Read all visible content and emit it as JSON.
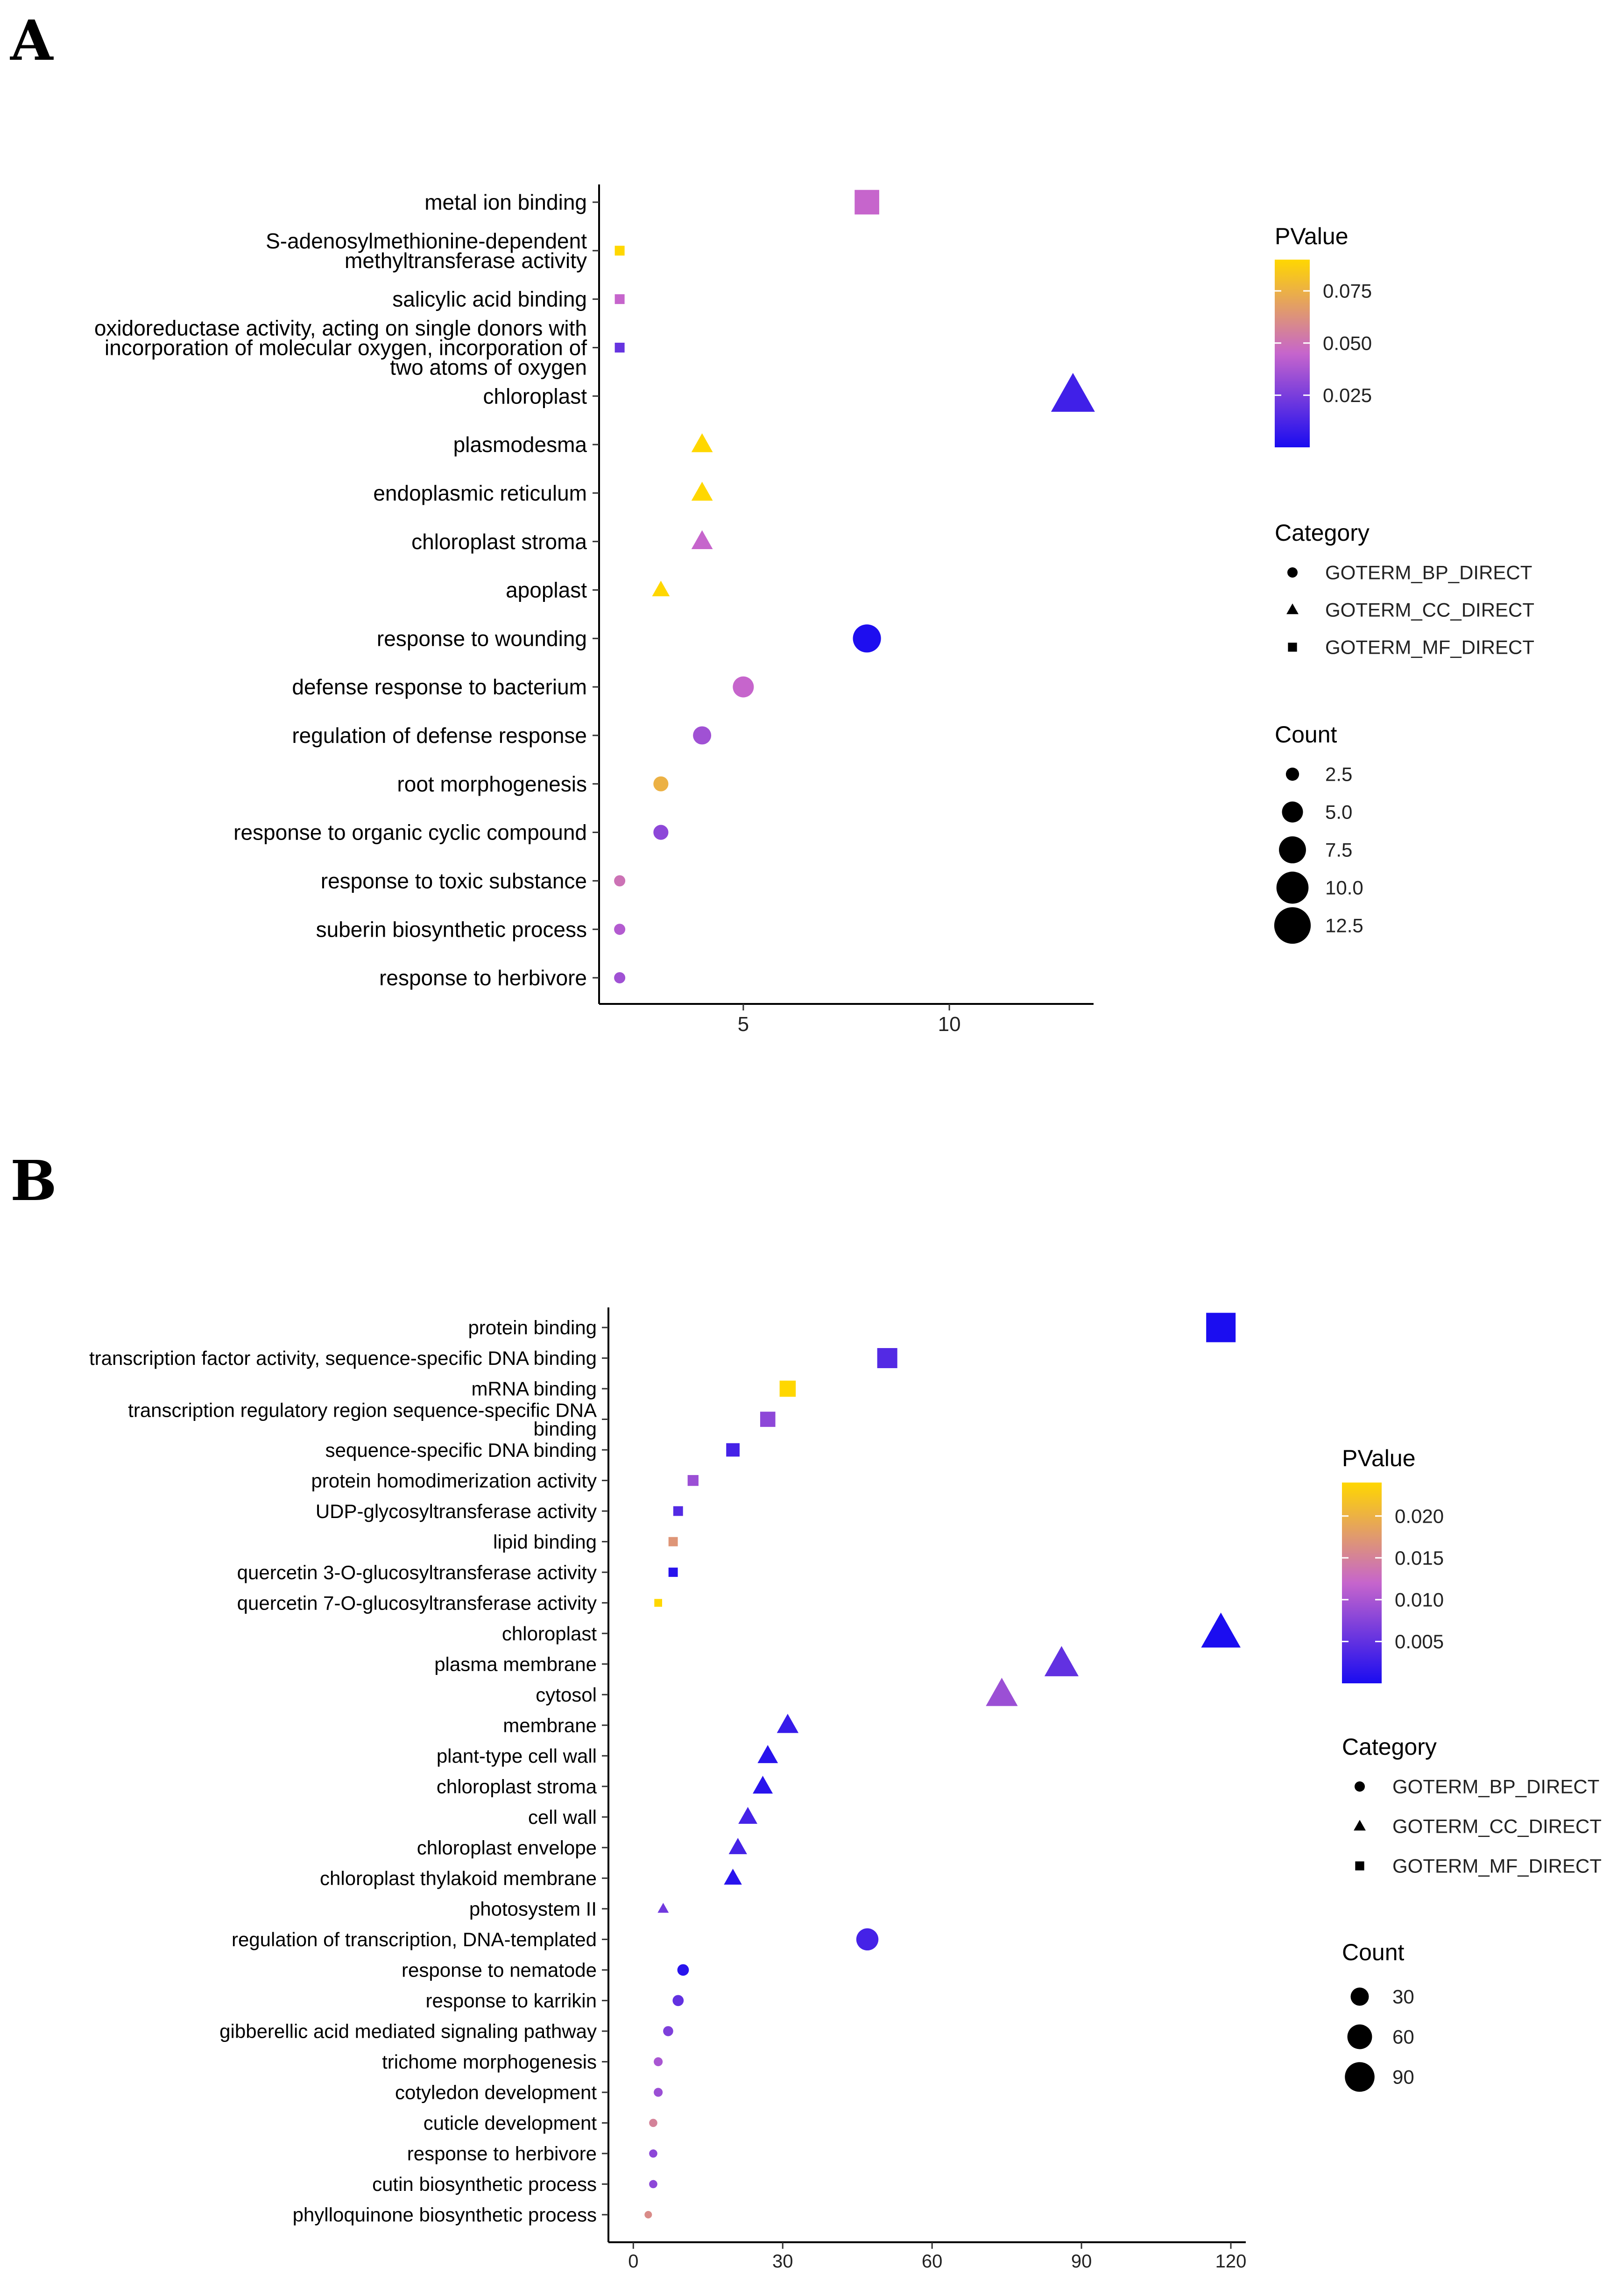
{
  "panels": {
    "a": "A",
    "b": "B"
  },
  "chart_data": [
    {
      "panel": "A",
      "type": "scatter",
      "xlabel": "",
      "ylabel": "",
      "xlim": [
        1.5,
        13.5
      ],
      "xticks": [
        5,
        10
      ],
      "categories": [
        "metal ion binding",
        "S-adenosylmethionine-dependent\nmethyltransferase activity",
        "salicylic acid binding",
        "oxidoreductase activity, acting on single donors with\nincorporation of molecular oxygen, incorporation of\ntwo atoms of oxygen",
        "chloroplast",
        "plasmodesma",
        "endoplasmic reticulum",
        "chloroplast stroma",
        "apoplast",
        "response to wounding",
        "defense response to bacterium",
        "regulation of defense response",
        "root morphogenesis",
        "response to organic cyclic compound",
        "response to toxic substance",
        "suberin biosynthetic process",
        "response to herbivore"
      ],
      "points": [
        {
          "count": 8,
          "category": "GOTERM_MF_DIRECT",
          "pvalue": 0.045
        },
        {
          "count": 2,
          "category": "GOTERM_MF_DIRECT",
          "pvalue": 0.09
        },
        {
          "count": 2,
          "category": "GOTERM_MF_DIRECT",
          "pvalue": 0.045
        },
        {
          "count": 2,
          "category": "GOTERM_MF_DIRECT",
          "pvalue": 0.02
        },
        {
          "count": 13,
          "category": "GOTERM_CC_DIRECT",
          "pvalue": 0.01
        },
        {
          "count": 4,
          "category": "GOTERM_CC_DIRECT",
          "pvalue": 0.09
        },
        {
          "count": 4,
          "category": "GOTERM_CC_DIRECT",
          "pvalue": 0.09
        },
        {
          "count": 4,
          "category": "GOTERM_CC_DIRECT",
          "pvalue": 0.045
        },
        {
          "count": 3,
          "category": "GOTERM_CC_DIRECT",
          "pvalue": 0.09
        },
        {
          "count": 8,
          "category": "GOTERM_BP_DIRECT",
          "pvalue": 0.001
        },
        {
          "count": 5,
          "category": "GOTERM_BP_DIRECT",
          "pvalue": 0.045
        },
        {
          "count": 4,
          "category": "GOTERM_BP_DIRECT",
          "pvalue": 0.035
        },
        {
          "count": 3,
          "category": "GOTERM_BP_DIRECT",
          "pvalue": 0.075
        },
        {
          "count": 3,
          "category": "GOTERM_BP_DIRECT",
          "pvalue": 0.03
        },
        {
          "count": 2,
          "category": "GOTERM_BP_DIRECT",
          "pvalue": 0.05
        },
        {
          "count": 2,
          "category": "GOTERM_BP_DIRECT",
          "pvalue": 0.04
        },
        {
          "count": 2,
          "category": "GOTERM_BP_DIRECT",
          "pvalue": 0.035
        }
      ],
      "pvalue_range": [
        0,
        0.09
      ],
      "count_range": [
        2,
        13
      ],
      "legend": {
        "pvalue_title": "PValue",
        "pvalue_ticks": [
          {
            "label": "0.075",
            "value": 0.075
          },
          {
            "label": "0.050",
            "value": 0.05
          },
          {
            "label": "0.025",
            "value": 0.025
          }
        ],
        "category_title": "Category",
        "category_items": [
          "GOTERM_BP_DIRECT",
          "GOTERM_CC_DIRECT",
          "GOTERM_MF_DIRECT"
        ],
        "count_title": "Count",
        "count_items": [
          {
            "label": "2.5",
            "value": 2.5
          },
          {
            "label": "5.0",
            "value": 5.0
          },
          {
            "label": "7.5",
            "value": 7.5
          },
          {
            "label": "10.0",
            "value": 10.0
          },
          {
            "label": "12.5",
            "value": 12.5
          }
        ]
      }
    },
    {
      "panel": "B",
      "type": "scatter",
      "xlabel": "",
      "ylabel": "",
      "xlim": [
        -5,
        123
      ],
      "xticks": [
        0,
        30,
        60,
        90,
        120
      ],
      "categories": [
        "protein binding",
        "transcription factor activity, sequence-specific DNA binding",
        "mRNA binding",
        "transcription regulatory region sequence-specific DNA\nbinding",
        "sequence-specific DNA binding",
        "protein homodimerization activity",
        "UDP-glycosyltransferase activity",
        "lipid binding",
        "quercetin 3-O-glucosyltransferase activity",
        "quercetin 7-O-glucosyltransferase activity",
        "chloroplast",
        "plasma membrane",
        "cytosol",
        "membrane",
        "plant-type cell wall",
        "chloroplast stroma",
        "cell wall",
        "chloroplast envelope",
        "chloroplast thylakoid membrane",
        "photosystem II",
        "regulation of transcription, DNA-templated",
        "response to nematode",
        "response to karrikin",
        "gibberellic acid mediated signaling pathway",
        "trichome morphogenesis",
        "cotyledon development",
        "cuticle development",
        "response to herbivore",
        "cutin biosynthetic process",
        "phylloquinone biosynthetic process"
      ],
      "points": [
        {
          "count": 118,
          "category": "GOTERM_MF_DIRECT",
          "pvalue": 0.0001
        },
        {
          "count": 51,
          "category": "GOTERM_MF_DIRECT",
          "pvalue": 0.004
        },
        {
          "count": 31,
          "category": "GOTERM_MF_DIRECT",
          "pvalue": 0.024
        },
        {
          "count": 27,
          "category": "GOTERM_MF_DIRECT",
          "pvalue": 0.008
        },
        {
          "count": 20,
          "category": "GOTERM_MF_DIRECT",
          "pvalue": 0.003
        },
        {
          "count": 12,
          "category": "GOTERM_MF_DIRECT",
          "pvalue": 0.009
        },
        {
          "count": 9,
          "category": "GOTERM_MF_DIRECT",
          "pvalue": 0.004
        },
        {
          "count": 8,
          "category": "GOTERM_MF_DIRECT",
          "pvalue": 0.017
        },
        {
          "count": 8,
          "category": "GOTERM_MF_DIRECT",
          "pvalue": 0.001
        },
        {
          "count": 5,
          "category": "GOTERM_MF_DIRECT",
          "pvalue": 0.024
        },
        {
          "count": 118,
          "category": "GOTERM_CC_DIRECT",
          "pvalue": 0.0001
        },
        {
          "count": 86,
          "category": "GOTERM_CC_DIRECT",
          "pvalue": 0.005
        },
        {
          "count": 74,
          "category": "GOTERM_CC_DIRECT",
          "pvalue": 0.009
        },
        {
          "count": 31,
          "category": "GOTERM_CC_DIRECT",
          "pvalue": 0.002
        },
        {
          "count": 27,
          "category": "GOTERM_CC_DIRECT",
          "pvalue": 0.001
        },
        {
          "count": 26,
          "category": "GOTERM_CC_DIRECT",
          "pvalue": 0.001
        },
        {
          "count": 23,
          "category": "GOTERM_CC_DIRECT",
          "pvalue": 0.003
        },
        {
          "count": 21,
          "category": "GOTERM_CC_DIRECT",
          "pvalue": 0.003
        },
        {
          "count": 20,
          "category": "GOTERM_CC_DIRECT",
          "pvalue": 0.001
        },
        {
          "count": 6,
          "category": "GOTERM_CC_DIRECT",
          "pvalue": 0.006
        },
        {
          "count": 47,
          "category": "GOTERM_BP_DIRECT",
          "pvalue": 0.003
        },
        {
          "count": 10,
          "category": "GOTERM_BP_DIRECT",
          "pvalue": 0.001
        },
        {
          "count": 9,
          "category": "GOTERM_BP_DIRECT",
          "pvalue": 0.005
        },
        {
          "count": 7,
          "category": "GOTERM_BP_DIRECT",
          "pvalue": 0.007
        },
        {
          "count": 5,
          "category": "GOTERM_BP_DIRECT",
          "pvalue": 0.01
        },
        {
          "count": 5,
          "category": "GOTERM_BP_DIRECT",
          "pvalue": 0.009
        },
        {
          "count": 4,
          "category": "GOTERM_BP_DIRECT",
          "pvalue": 0.015
        },
        {
          "count": 4,
          "category": "GOTERM_BP_DIRECT",
          "pvalue": 0.008
        },
        {
          "count": 4,
          "category": "GOTERM_BP_DIRECT",
          "pvalue": 0.008
        },
        {
          "count": 3,
          "category": "GOTERM_BP_DIRECT",
          "pvalue": 0.016
        }
      ],
      "pvalue_range": [
        0,
        0.024
      ],
      "count_range": [
        3,
        118
      ],
      "legend": {
        "pvalue_title": "PValue",
        "pvalue_ticks": [
          {
            "label": "0.020",
            "value": 0.02
          },
          {
            "label": "0.015",
            "value": 0.015
          },
          {
            "label": "0.010",
            "value": 0.01
          },
          {
            "label": "0.005",
            "value": 0.005
          }
        ],
        "category_title": "Category",
        "category_items": [
          "GOTERM_BP_DIRECT",
          "GOTERM_CC_DIRECT",
          "GOTERM_MF_DIRECT"
        ],
        "count_title": "Count",
        "count_items": [
          {
            "label": "30",
            "value": 30
          },
          {
            "label": "60",
            "value": 60
          },
          {
            "label": "90",
            "value": 90
          }
        ]
      }
    }
  ],
  "colors": {
    "low": "#1a0cf0",
    "mid": "#c665cc",
    "high": "#ffd700"
  }
}
